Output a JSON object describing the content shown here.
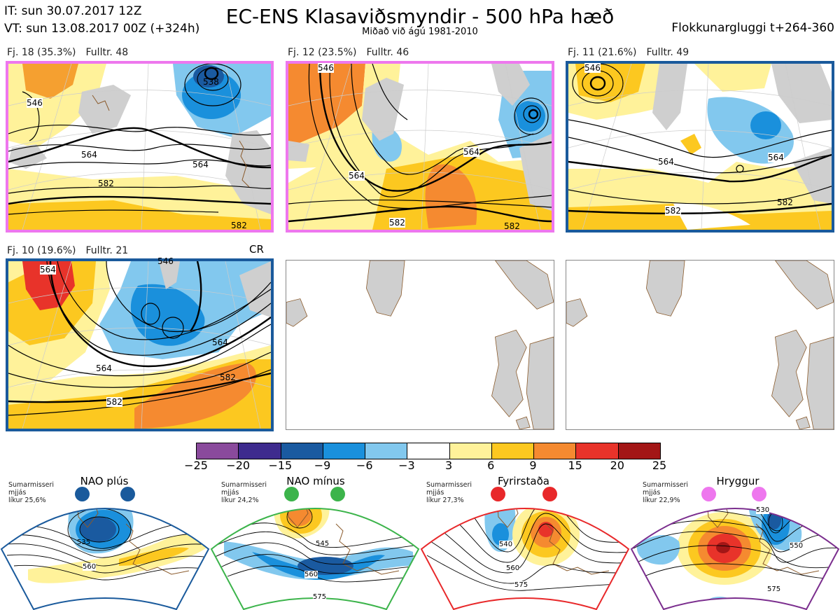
{
  "header": {
    "it": "IT: sun 30.07.2017 12Z",
    "vt": "VT: sun 13.08.2017 00Z  (+324h)",
    "title": "EC-ENS Klasaviðsmyndir - 500 hPa hæð",
    "subtitle": "Miðað við ágú 1981-2010",
    "window": "Flokkunargluggi t+264-360"
  },
  "panels": [
    {
      "cluster": "Fj. 18 (35.3%)",
      "members": "Fulltr. 48",
      "frame_color": "#ee77ee",
      "contour_labels": [
        "546",
        "538",
        "564",
        "564",
        "582",
        "582"
      ]
    },
    {
      "cluster": "Fj. 12 (23.5%)",
      "members": "Fulltr. 46",
      "frame_color": "#ee77ee",
      "contour_labels": [
        "546",
        "564",
        "564",
        "582",
        "582"
      ]
    },
    {
      "cluster": "Fj. 11 (21.6%)",
      "members": "Fulltr. 49",
      "frame_color": "#1a5a9c",
      "contour_labels": [
        "546",
        "564",
        "564",
        "582",
        "582"
      ]
    },
    {
      "cluster": "Fj. 10 (19.6%)",
      "members": "Fulltr. 21",
      "frame_color": "#1a5a9c",
      "tag": "CR",
      "contour_labels": [
        "564",
        "546",
        "564",
        "564",
        "582",
        "582"
      ]
    }
  ],
  "colorbar": {
    "ticks": [
      "−25",
      "−20",
      "−15",
      "−9",
      "−6",
      "−3",
      "3",
      "6",
      "9",
      "15",
      "20",
      "25"
    ],
    "colors": [
      "#8a4a9c",
      "#3e2b8e",
      "#1a5aa0",
      "#1a90dc",
      "#82c8ee",
      "#ffffff",
      "#fff29a",
      "#fcc820",
      "#f58a30",
      "#e8332a",
      "#a31616"
    ]
  },
  "regimes": [
    {
      "name": "NAO plús",
      "season": "Sumarmisseri",
      "word": "mjjás",
      "prob": "líkur 25,6%",
      "color": "#1a5a9c",
      "labels": [
        "535",
        "560"
      ]
    },
    {
      "name": "NAO mínus",
      "season": "Sumarmisseri",
      "word": "mjjás",
      "prob": "líkur 24,2%",
      "color": "#3cb44b",
      "labels": [
        "545",
        "560",
        "575"
      ]
    },
    {
      "name": "Fyrirstaða",
      "season": "Sumarmisseri",
      "word": "mjjás",
      "prob": "líkur 27,3%",
      "color": "#e8282a",
      "labels": [
        "540",
        "560",
        "575"
      ]
    },
    {
      "name": "Hryggur",
      "season": "Sumarmisseri",
      "word": "mjjás",
      "prob": "líkur 22,9%",
      "color": "#ee77ee",
      "labels": [
        "530",
        "550",
        "575"
      ]
    }
  ]
}
